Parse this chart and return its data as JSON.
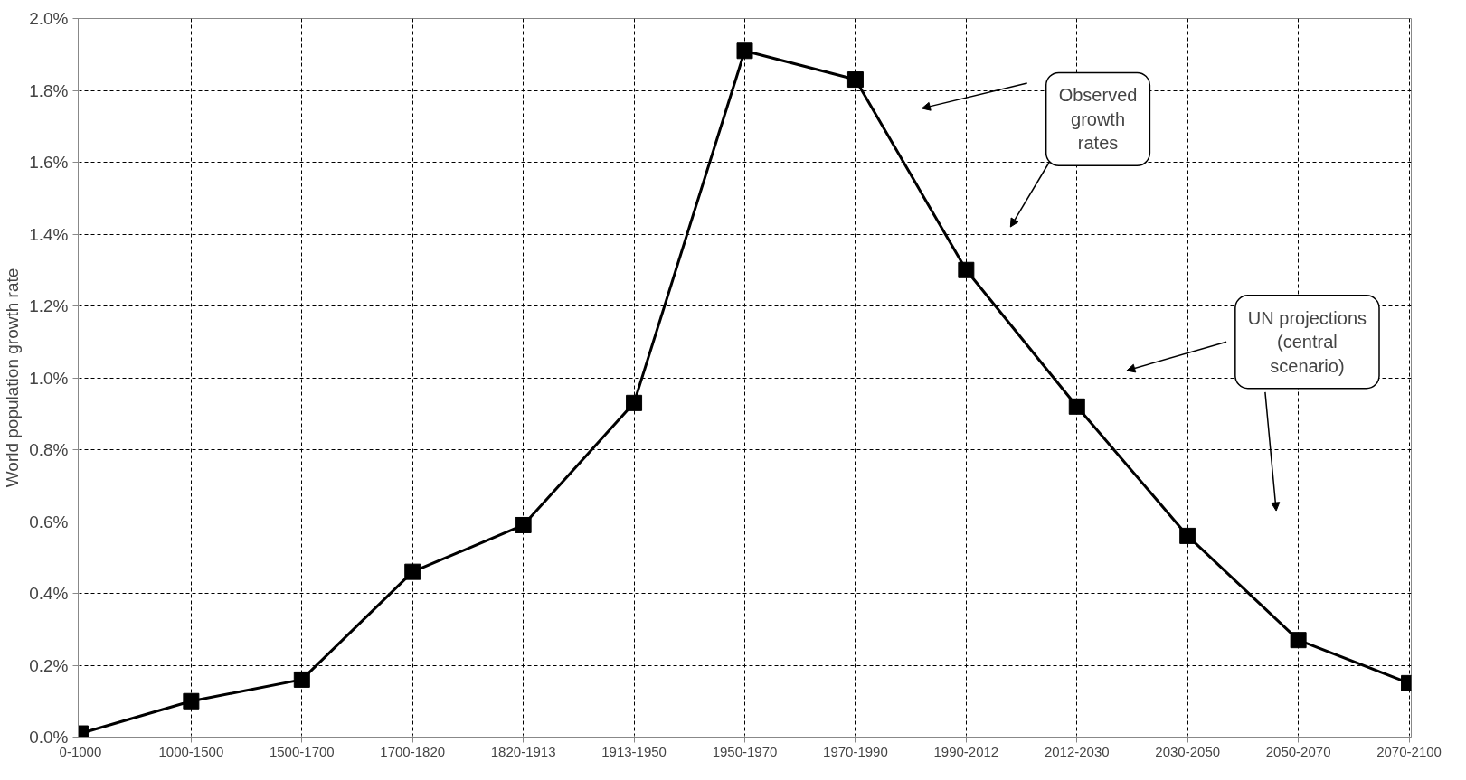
{
  "chart_data": {
    "type": "line",
    "ylabel": "World population growth rate",
    "categories": [
      "0-1000",
      "1000-1500",
      "1500-1700",
      "1700-1820",
      "1820-1913",
      "1913-1950",
      "1950-1970",
      "1970-1990",
      "1990-2012",
      "2012-2030",
      "2030-2050",
      "2050-2070",
      "2070-2100"
    ],
    "series": [
      {
        "color": "#000000",
        "values": [
          0.01,
          0.1,
          0.16,
          0.46,
          0.59,
          0.93,
          1.91,
          1.83,
          1.3,
          0.92,
          0.56,
          0.27,
          0.15
        ]
      }
    ],
    "ylim": [
      0,
      2.0
    ],
    "yticks": [
      {
        "value": 0,
        "label": "0.0%"
      },
      {
        "value": 0.2,
        "label": "0.2%"
      },
      {
        "value": 0.4,
        "label": "0.4%"
      },
      {
        "value": 0.6,
        "label": "0.6%"
      },
      {
        "value": 0.8,
        "label": "0.8%"
      },
      {
        "value": 1.0,
        "label": "1.0%"
      },
      {
        "value": 1.2,
        "label": "1.2%"
      },
      {
        "value": 1.4,
        "label": "1.4%"
      },
      {
        "value": 1.6,
        "label": "1.6%"
      },
      {
        "value": 1.8,
        "label": "1.8%"
      },
      {
        "value": 2.0,
        "label": "2.0%"
      }
    ],
    "grid": true,
    "marker": "square",
    "line_style": "solid",
    "annotations": [
      "Observed\ngrowth\nrates",
      "UN projections\n(central\nscenario)"
    ]
  }
}
